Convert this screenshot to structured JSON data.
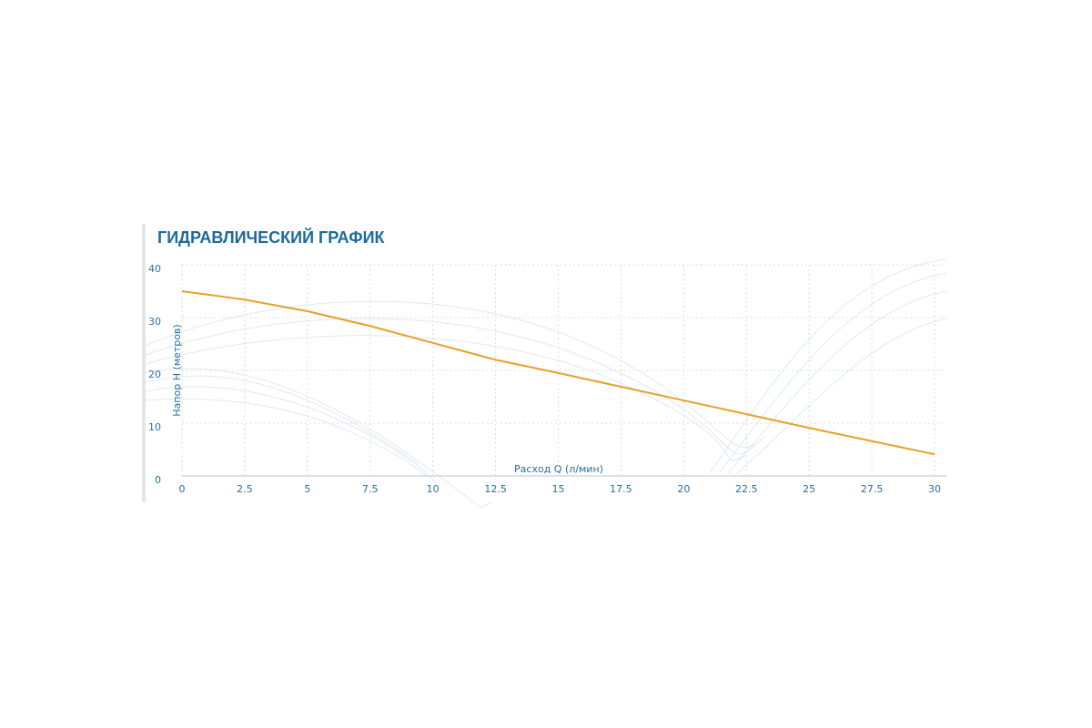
{
  "chart_data": {
    "type": "line",
    "title": "ГИДРАВЛИЧЕСКИЙ ГРАФИК",
    "x_label": "Расход Q (л/мин)",
    "y_label": "Напор Н (метров)",
    "x": [
      0,
      2.5,
      5,
      7.5,
      10,
      12.5,
      15,
      17.5,
      20,
      22.5,
      25,
      27.5,
      30
    ],
    "series": [
      {
        "name": null,
        "color": "#e8a02a",
        "values": [
          35,
          33.4,
          31.2,
          28.4,
          25.2,
          22,
          19.5,
          16.9,
          14.3,
          11.7,
          9.1,
          6.6,
          4.1
        ]
      }
    ],
    "xlim": [
      0,
      30
    ],
    "ylim": [
      0,
      40
    ],
    "xticks": [
      0,
      2.5,
      5,
      7.5,
      10,
      12.5,
      15,
      17.5,
      20,
      22.5,
      25,
      27.5,
      30
    ],
    "yticks": [
      0,
      10,
      20,
      30,
      40
    ],
    "grid": true
  }
}
